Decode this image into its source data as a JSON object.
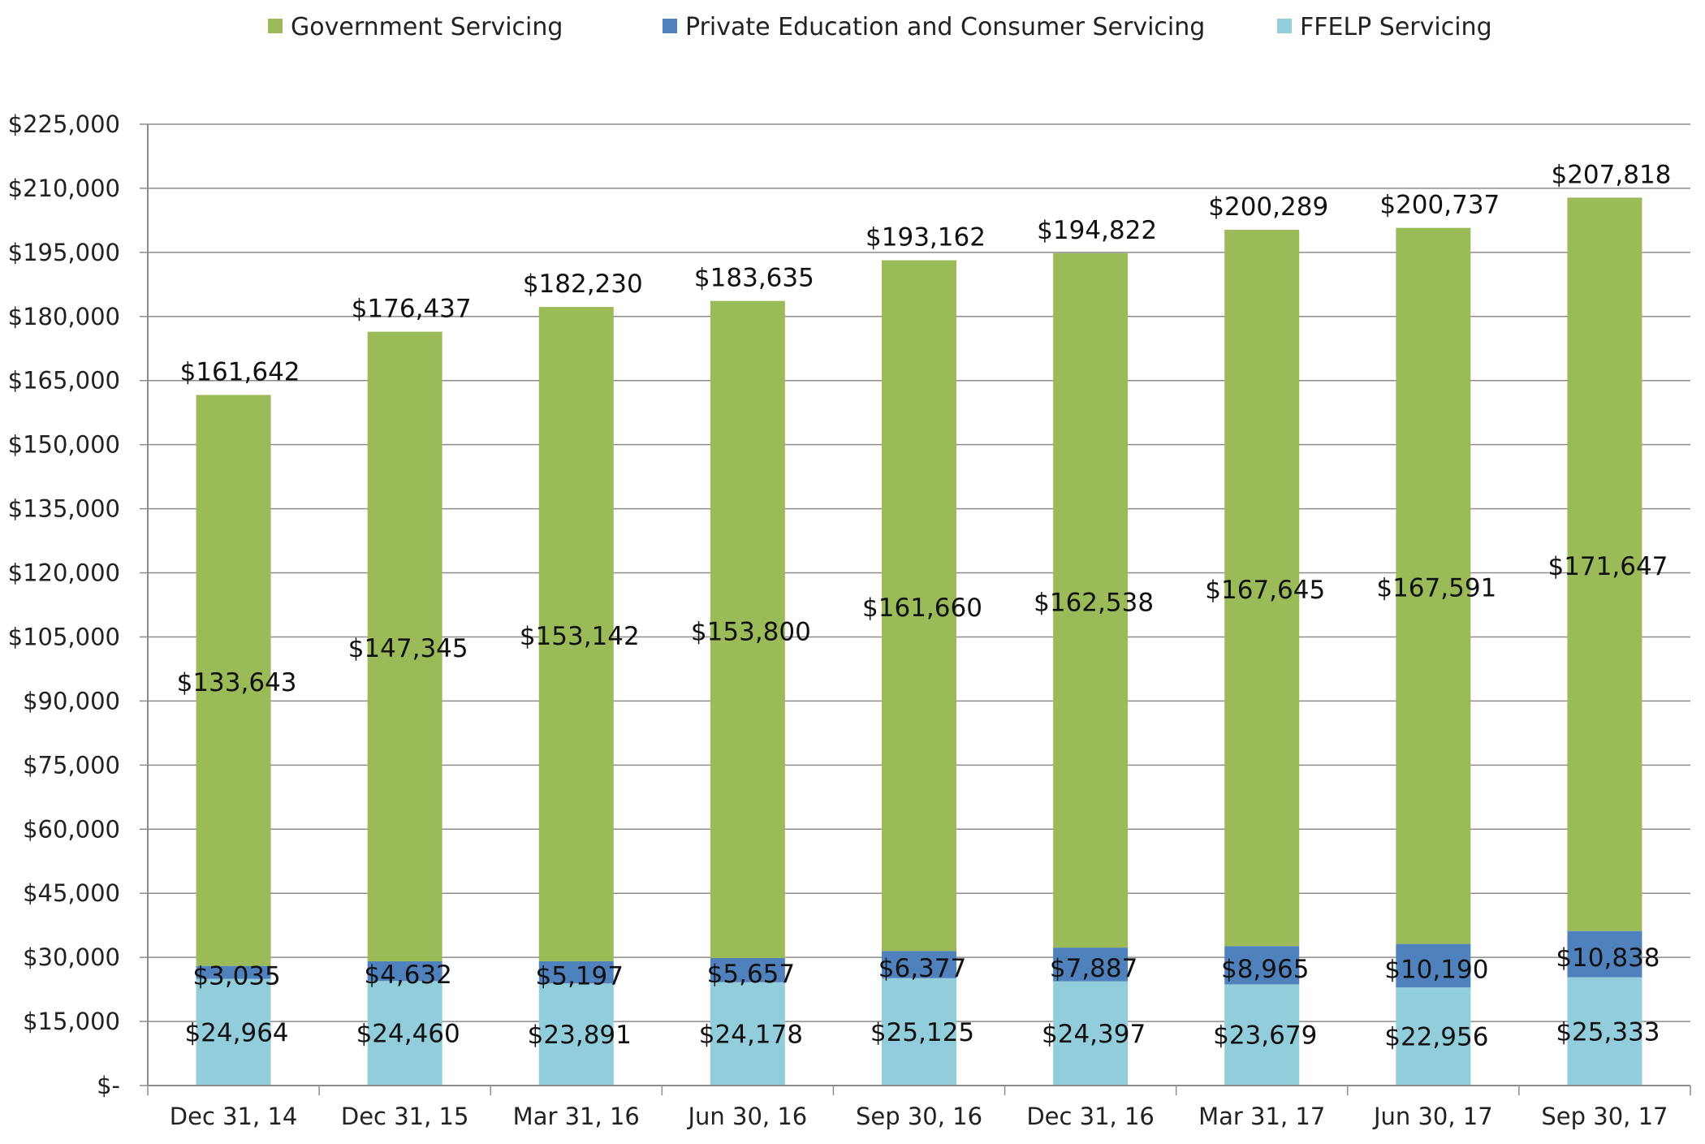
{
  "chart_data": {
    "type": "bar",
    "stacked": true,
    "categories": [
      "Dec 31, 14",
      "Dec 31, 15",
      "Mar 31, 16",
      "Jun 30, 16",
      "Sep 30, 16",
      "Dec 31, 16",
      "Mar 31, 17",
      "Jun 30, 17",
      "Sep 30, 17"
    ],
    "series": [
      {
        "name": "FFELP Servicing",
        "color": "#92CDDC",
        "values": [
          24964,
          24460,
          23891,
          24178,
          25125,
          24397,
          23679,
          22956,
          25333
        ],
        "labels": [
          "$24,964",
          "$24,460",
          "$23,891",
          "$24,178",
          "$25,125",
          "$24,397",
          "$23,679",
          "$22,956",
          "$25,333"
        ]
      },
      {
        "name": "Private Education and Consumer Servicing",
        "color": "#4F81BD",
        "values": [
          3035,
          4632,
          5197,
          5657,
          6377,
          7887,
          8965,
          10190,
          10838
        ],
        "labels": [
          "$3,035",
          "$4,632",
          "$5,197",
          "$5,657",
          "$6,377",
          "$7,887",
          "$8,965",
          "$10,190",
          "$10,838"
        ]
      },
      {
        "name": "Government Servicing",
        "color": "#9BBB59",
        "values": [
          133643,
          147345,
          153142,
          153800,
          161660,
          162538,
          167645,
          167591,
          171647
        ],
        "labels": [
          "$133,643",
          "$147,345",
          "$153,142",
          "$153,800",
          "$161,660",
          "$162,538",
          "$167,645",
          "$167,591",
          "$171,647"
        ]
      }
    ],
    "totals": [
      161642,
      176437,
      182230,
      183635,
      193162,
      194822,
      200289,
      200737,
      207818
    ],
    "total_labels": [
      "$161,642",
      "$176,437",
      "$182,230",
      "$183,635",
      "$193,162",
      "$194,822",
      "$200,289",
      "$200,737",
      "$207,818"
    ],
    "legend_order": [
      "Government Servicing",
      "Private Education and Consumer Servicing",
      "FFELP Servicing"
    ],
    "legend_position": "top",
    "ylim": [
      0,
      225000
    ],
    "ytick_values": [
      0,
      15000,
      30000,
      45000,
      60000,
      75000,
      90000,
      105000,
      120000,
      135000,
      150000,
      165000,
      180000,
      195000,
      210000,
      225000
    ],
    "ytick_labels": [
      "$-",
      "$15,000",
      "$30,000",
      "$45,000",
      "$60,000",
      "$75,000",
      "$90,000",
      "$105,000",
      "$120,000",
      "$135,000",
      "$150,000",
      "$165,000",
      "$180,000",
      "$195,000",
      "$210,000",
      "$225,000"
    ],
    "grid": true,
    "title": "",
    "xlabel": "",
    "ylabel": ""
  }
}
